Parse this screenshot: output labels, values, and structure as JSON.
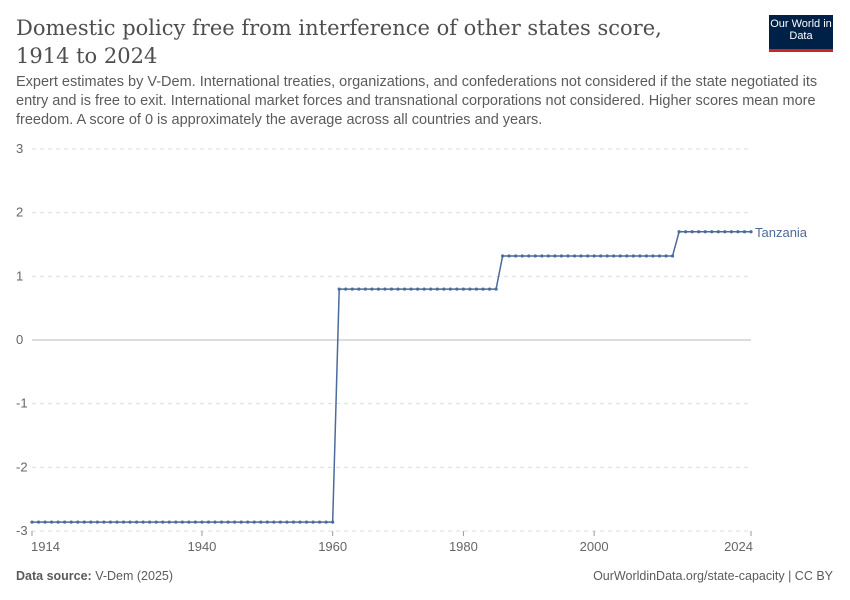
{
  "header": {
    "title": "Domestic policy free from interference of other states score, 1914 to 2024",
    "subtitle": "Expert estimates by V-Dem. International treaties, organizations, and confederations not considered if the state negotiated its entry and is free to exit. International market forces and transnational corporations not considered. Higher scores mean more freedom. A score of 0 is approximately the average across all countries and years.",
    "logo": "Our World in Data"
  },
  "footer": {
    "source_label": "Data source:",
    "source": "V-Dem (2025)",
    "url": "OurWorldinData.org/state-capacity | CC BY"
  },
  "chart_data": {
    "type": "line",
    "xlim": [
      1914,
      2024
    ],
    "ylim": [
      -3,
      3
    ],
    "x_ticks": [
      "1914",
      "1940",
      "1960",
      "1980",
      "2000",
      "2024"
    ],
    "y_ticks": [
      "3",
      "2",
      "1",
      "0",
      "-1",
      "-2",
      "-3"
    ],
    "grid": true,
    "colors": {
      "line": "#4c6a9c",
      "grid": "#dddddd",
      "zero": "#bbbbbb"
    },
    "series": [
      {
        "name": "Tanzania",
        "x": [
          1914,
          1915,
          1916,
          1917,
          1918,
          1919,
          1920,
          1921,
          1922,
          1923,
          1924,
          1925,
          1926,
          1927,
          1928,
          1929,
          1930,
          1931,
          1932,
          1933,
          1934,
          1935,
          1936,
          1937,
          1938,
          1939,
          1940,
          1941,
          1942,
          1943,
          1944,
          1945,
          1946,
          1947,
          1948,
          1949,
          1950,
          1951,
          1952,
          1953,
          1954,
          1955,
          1956,
          1957,
          1958,
          1959,
          1960,
          1961,
          1962,
          1963,
          1964,
          1965,
          1966,
          1967,
          1968,
          1969,
          1970,
          1971,
          1972,
          1973,
          1974,
          1975,
          1976,
          1977,
          1978,
          1979,
          1980,
          1981,
          1982,
          1983,
          1984,
          1985,
          1986,
          1987,
          1988,
          1989,
          1990,
          1991,
          1992,
          1993,
          1994,
          1995,
          1996,
          1997,
          1998,
          1999,
          2000,
          2001,
          2002,
          2003,
          2004,
          2005,
          2006,
          2007,
          2008,
          2009,
          2010,
          2011,
          2012,
          2013,
          2014,
          2015,
          2016,
          2017,
          2018,
          2019,
          2020,
          2021,
          2022,
          2023,
          2024
        ],
        "y": [
          -2.86,
          -2.86,
          -2.86,
          -2.86,
          -2.86,
          -2.86,
          -2.86,
          -2.86,
          -2.86,
          -2.86,
          -2.86,
          -2.86,
          -2.86,
          -2.86,
          -2.86,
          -2.86,
          -2.86,
          -2.86,
          -2.86,
          -2.86,
          -2.86,
          -2.86,
          -2.86,
          -2.86,
          -2.86,
          -2.86,
          -2.86,
          -2.86,
          -2.86,
          -2.86,
          -2.86,
          -2.86,
          -2.86,
          -2.86,
          -2.86,
          -2.86,
          -2.86,
          -2.86,
          -2.86,
          -2.86,
          -2.86,
          -2.86,
          -2.86,
          -2.86,
          -2.86,
          -2.86,
          -2.86,
          0.8,
          0.8,
          0.8,
          0.8,
          0.8,
          0.8,
          0.8,
          0.8,
          0.8,
          0.8,
          0.8,
          0.8,
          0.8,
          0.8,
          0.8,
          0.8,
          0.8,
          0.8,
          0.8,
          0.8,
          0.8,
          0.8,
          0.8,
          0.8,
          0.8,
          1.32,
          1.32,
          1.32,
          1.32,
          1.32,
          1.32,
          1.32,
          1.32,
          1.32,
          1.32,
          1.32,
          1.32,
          1.32,
          1.32,
          1.32,
          1.32,
          1.32,
          1.32,
          1.32,
          1.32,
          1.32,
          1.32,
          1.32,
          1.32,
          1.32,
          1.32,
          1.32,
          1.7,
          1.7,
          1.7,
          1.7,
          1.7,
          1.7,
          1.7,
          1.7,
          1.7,
          1.7,
          1.7,
          1.7
        ]
      }
    ]
  }
}
